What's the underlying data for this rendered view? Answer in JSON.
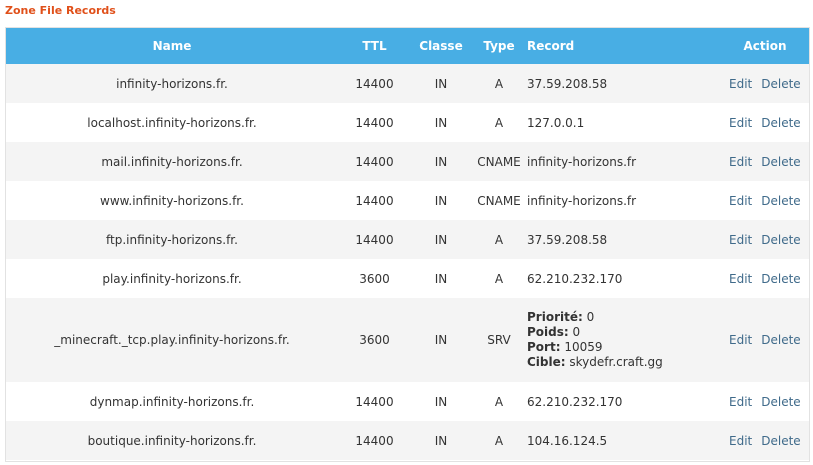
{
  "title": "Zone File Records",
  "columns": {
    "name": "Name",
    "ttl": "TTL",
    "classe": "Classe",
    "type": "Type",
    "record": "Record",
    "action": "Action"
  },
  "actions": {
    "edit": "Edit",
    "delete": "Delete"
  },
  "rows": [
    {
      "name": "infinity-horizons.fr.",
      "ttl": "14400",
      "classe": "IN",
      "type": "A",
      "record": "37.59.208.58"
    },
    {
      "name": "localhost.infinity-horizons.fr.",
      "ttl": "14400",
      "classe": "IN",
      "type": "A",
      "record": "127.0.0.1"
    },
    {
      "name": "mail.infinity-horizons.fr.",
      "ttl": "14400",
      "classe": "IN",
      "type": "CNAME",
      "record": "infinity-horizons.fr"
    },
    {
      "name": "www.infinity-horizons.fr.",
      "ttl": "14400",
      "classe": "IN",
      "type": "CNAME",
      "record": "infinity-horizons.fr"
    },
    {
      "name": "ftp.infinity-horizons.fr.",
      "ttl": "14400",
      "classe": "IN",
      "type": "A",
      "record": "37.59.208.58"
    },
    {
      "name": "play.infinity-horizons.fr.",
      "ttl": "3600",
      "classe": "IN",
      "type": "A",
      "record": "62.210.232.170"
    },
    {
      "name": "_minecraft._tcp.play.infinity-horizons.fr.",
      "ttl": "3600",
      "classe": "IN",
      "type": "SRV",
      "srv": {
        "priorite_label": "Priorité:",
        "priorite": "0",
        "poids_label": "Poids:",
        "poids": "0",
        "port_label": "Port:",
        "port": "10059",
        "cible_label": "Cible:",
        "cible": "skydefr.craft.gg"
      }
    },
    {
      "name": "dynmap.infinity-horizons.fr.",
      "ttl": "14400",
      "classe": "IN",
      "type": "A",
      "record": "62.210.232.170"
    },
    {
      "name": "boutique.infinity-horizons.fr.",
      "ttl": "14400",
      "classe": "IN",
      "type": "A",
      "record": "104.16.124.5"
    }
  ],
  "colors": {
    "title": "#e0501a",
    "header_bg": "#48aee4",
    "header_text": "#ffffff",
    "row_alt": "#f4f4f4",
    "link": "#3f6a8a"
  }
}
